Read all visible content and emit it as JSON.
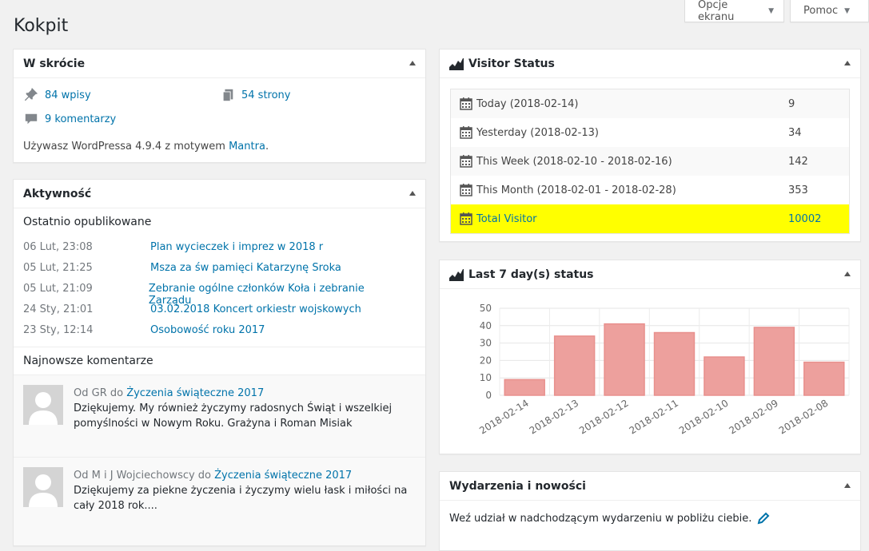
{
  "top": {
    "screen_options_label": "Opcje ekranu",
    "help_label": "Pomoc"
  },
  "page": {
    "title": "Kokpit"
  },
  "glance": {
    "title": "W skrócie",
    "posts_label": "84 wpisy",
    "pages_label": "54 strony",
    "comments_label": "9 komentarzy",
    "footer_text": "Używasz WordPressa 4.9.4 z motywem ",
    "theme_link": "Mantra",
    "footer_end": "."
  },
  "activity": {
    "title": "Aktywność",
    "recent_heading": "Ostatnio opublikowane",
    "posts": [
      {
        "date": "06 Lut, 23:08",
        "title": "Plan wycieczek i imprez w 2018 r"
      },
      {
        "date": "05 Lut, 21:25",
        "title": "Msza za św pamięci Katarzynę Sroka"
      },
      {
        "date": "05 Lut, 21:09",
        "title": "Zebranie ogólne członków Koła i zebranie Zarządu"
      },
      {
        "date": "24 Sty, 21:01",
        "title": "03.02.2018 Koncert orkiestr wojskowych"
      },
      {
        "date": "23 Sty, 12:14",
        "title": "Osobowość roku 2017"
      }
    ],
    "comments_heading": "Najnowsze komentarze",
    "comments": [
      {
        "from_prefix": "Od GR do ",
        "post": "Życzenia świąteczne 2017",
        "text": "Dziękujemy. My również życzymy radosnych Świąt i wszelkiej pomyślności w Nowym Roku. Grażyna i Roman Misiak"
      },
      {
        "from_prefix": "Od M i J Wojciechowscy do ",
        "post": "Życzenia świąteczne 2017",
        "text": "Dziękujemy za piekne życzenia i życzymy wielu łask i miłości na cały 2018 rok...."
      }
    ]
  },
  "visitor": {
    "title": "Visitor Status",
    "rows": [
      {
        "label": "Today (2018-02-14)",
        "value": "9"
      },
      {
        "label": "Yesterday (2018-02-13)",
        "value": "34"
      },
      {
        "label": "This Week (2018-02-10 - 2018-02-16)",
        "value": "142"
      },
      {
        "label": "This Month (2018-02-01 - 2018-02-28)",
        "value": "353"
      },
      {
        "label": "Total Visitor",
        "value": "10002"
      }
    ],
    "highlight_color": "#ffff00"
  },
  "last7": {
    "title": "Last 7 day(s) status",
    "chart_data": {
      "type": "bar",
      "categories": [
        "2018-02-14",
        "2018-02-13",
        "2018-02-12",
        "2018-02-11",
        "2018-02-10",
        "2018-02-09",
        "2018-02-08"
      ],
      "values": [
        9,
        34,
        41,
        36,
        22,
        39,
        19
      ],
      "ylim": [
        0,
        50
      ],
      "yticks": [
        0,
        10,
        20,
        30,
        40,
        50
      ],
      "bar_color": "#e8908d",
      "grid": true
    }
  },
  "events": {
    "title": "Wydarzenia i nowości",
    "text": "Weź udział w nadchodzącym wydarzeniu w pobliżu ciebie."
  },
  "colors": {
    "link": "#0073aa",
    "bar_fill": "#eda09d",
    "bar_stroke": "#e8908d"
  }
}
